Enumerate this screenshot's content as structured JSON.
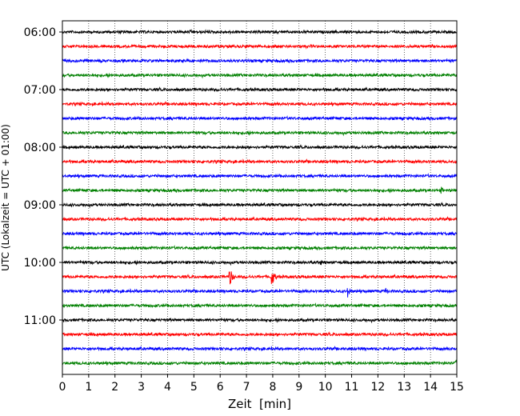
{
  "chart_data": {
    "type": "line",
    "chart_kind": "helicorder seismogram",
    "title": "",
    "xlabel": "Zeit  [min]",
    "ylabel": "UTC (Lokalzeit = UTC + 01:00)",
    "xlim": [
      0,
      15
    ],
    "x_ticks": [
      "0",
      "1",
      "2",
      "3",
      "4",
      "5",
      "6",
      "7",
      "8",
      "9",
      "10",
      "11",
      "12",
      "13",
      "14",
      "15"
    ],
    "y_tick_labels": [
      "06:00",
      "07:00",
      "08:00",
      "09:00",
      "10:00",
      "11:00"
    ],
    "trace_start_times": [
      "06:00",
      "06:15",
      "06:30",
      "06:45",
      "07:00",
      "07:15",
      "07:30",
      "07:45",
      "08:00",
      "08:15",
      "08:30",
      "08:45",
      "09:00",
      "09:15",
      "09:30",
      "09:45",
      "10:00",
      "10:15",
      "10:30",
      "10:45",
      "11:00",
      "11:15",
      "11:30",
      "11:45"
    ],
    "trace_colors": [
      "#000000",
      "#ff0000",
      "#0000ff",
      "#008000"
    ],
    "vertical_grid": "dotted, every 1 min",
    "events": [
      {
        "trace_start": "10:15",
        "minute": 6.35,
        "amplitude": "large"
      },
      {
        "trace_start": "10:15",
        "minute": 7.95,
        "amplitude": "large"
      },
      {
        "trace_start": "10:30",
        "minute": 10.85,
        "amplitude": "medium"
      },
      {
        "trace_start": "10:30",
        "minute": 12.3,
        "amplitude": "small"
      },
      {
        "trace_start": "10:00",
        "minute": 9.8,
        "amplitude": "small"
      },
      {
        "trace_start": "08:45",
        "minute": 14.4,
        "amplitude": "small"
      },
      {
        "trace_start": "11:45",
        "minute": 14.95,
        "amplitude": "small"
      }
    ]
  }
}
